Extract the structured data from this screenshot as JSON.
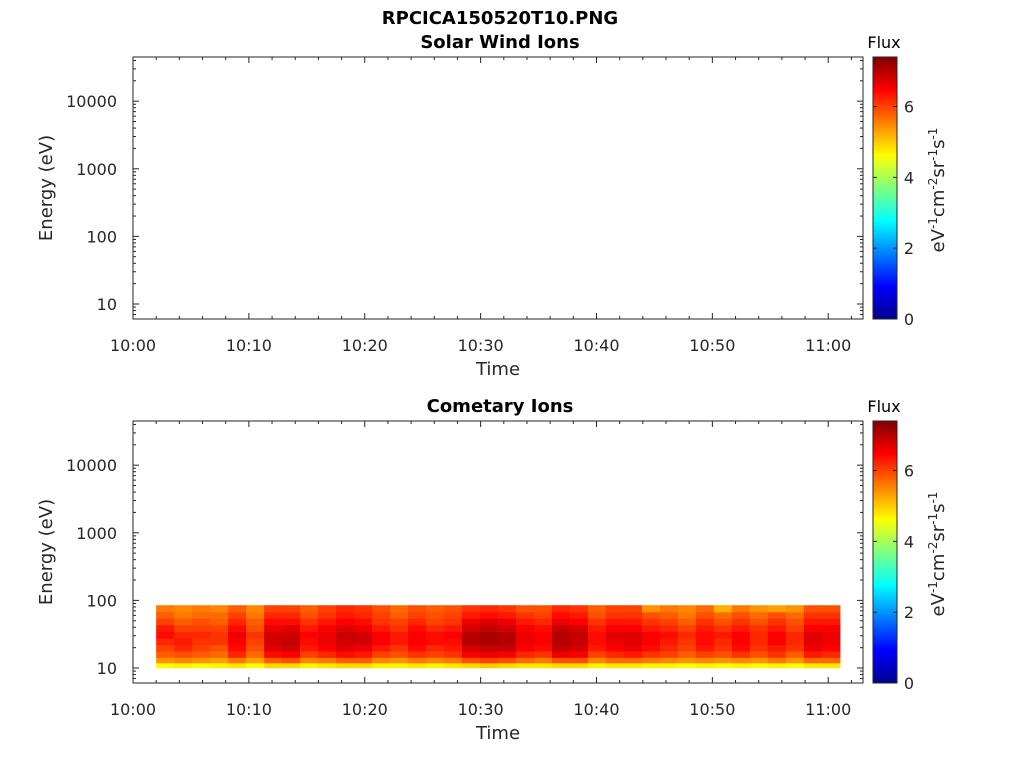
{
  "figure": {
    "title": "RPCICA150520T10.PNG"
  },
  "colors": {
    "axis": "#262626",
    "colormap": [
      "#00008f",
      "#0000ff",
      "#007fff",
      "#00ffff",
      "#7fff7f",
      "#ffff00",
      "#ff7f00",
      "#ff0000",
      "#7f0000"
    ]
  },
  "chart_data": [
    {
      "type": "heatmap",
      "title": "Solar Wind Ions",
      "xlabel": "Time",
      "ylabel": "Energy (eV)",
      "x_ticks": [
        "10:00",
        "10:10",
        "10:20",
        "10:30",
        "10:40",
        "10:50",
        "11:00"
      ],
      "x_range": [
        "10:00",
        "11:03"
      ],
      "y_scale": "log",
      "y_ticks": [
        "10",
        "100",
        "1000",
        "10000"
      ],
      "y_range": [
        6,
        45000
      ],
      "colorbar": {
        "title": "Flux",
        "label": "eV-1cm-2sr-1s-1",
        "ticks": [
          "0",
          "2",
          "4",
          "6"
        ],
        "range": [
          0,
          7.4
        ]
      },
      "data": []
    },
    {
      "type": "heatmap",
      "title": "Cometary Ions",
      "xlabel": "Time",
      "ylabel": "Energy (eV)",
      "x_ticks": [
        "10:00",
        "10:10",
        "10:20",
        "10:30",
        "10:40",
        "10:50",
        "11:00"
      ],
      "x_range": [
        "10:00",
        "11:03"
      ],
      "y_scale": "log",
      "y_ticks": [
        "10",
        "100",
        "1000",
        "10000"
      ],
      "y_range": [
        6,
        45000
      ],
      "colorbar": {
        "title": "Flux",
        "label": "eV-1cm-2sr-1s-1",
        "ticks": [
          "0",
          "2",
          "4",
          "6"
        ],
        "range": [
          0,
          7.4
        ]
      },
      "data": {
        "time_start": "10:02",
        "time_end": "11:01",
        "energy_bins": [
          11,
          13,
          16,
          20,
          25,
          31,
          39,
          49,
          61,
          76
        ],
        "n_time_steps": 38,
        "flux": [
          [
            4.6,
            5.4,
            5.8,
            6.0,
            6.2,
            6.4,
            6.3,
            6.0,
            5.8,
            5.6
          ],
          [
            4.7,
            5.5,
            5.9,
            6.2,
            6.3,
            6.2,
            6.0,
            5.8,
            5.6,
            5.5
          ],
          [
            4.6,
            5.4,
            5.8,
            6.0,
            6.1,
            6.2,
            6.0,
            5.9,
            5.7,
            5.6
          ],
          [
            4.7,
            5.3,
            5.7,
            5.9,
            6.1,
            6.1,
            6.0,
            5.8,
            5.7,
            5.5
          ],
          [
            4.8,
            5.6,
            6.2,
            6.4,
            6.5,
            6.6,
            6.4,
            6.2,
            6.0,
            5.8
          ],
          [
            4.6,
            5.3,
            5.7,
            5.9,
            6.0,
            6.1,
            5.9,
            5.8,
            5.6,
            5.5
          ],
          [
            4.9,
            5.8,
            6.4,
            6.7,
            6.8,
            6.8,
            6.6,
            6.4,
            6.2,
            6.0
          ],
          [
            4.9,
            5.9,
            6.5,
            6.8,
            6.9,
            6.8,
            6.7,
            6.4,
            6.2,
            6.0
          ],
          [
            4.7,
            5.5,
            6.0,
            6.3,
            6.4,
            6.5,
            6.3,
            6.1,
            5.9,
            5.8
          ],
          [
            4.8,
            5.6,
            6.2,
            6.5,
            6.6,
            6.6,
            6.5,
            6.3,
            6.1,
            6.0
          ],
          [
            4.9,
            5.8,
            6.4,
            6.7,
            6.8,
            6.9,
            6.7,
            6.5,
            6.3,
            6.2
          ],
          [
            4.9,
            5.8,
            6.3,
            6.6,
            6.8,
            6.8,
            6.6,
            6.4,
            6.2,
            6.1
          ],
          [
            4.7,
            5.5,
            6.0,
            6.3,
            6.5,
            6.5,
            6.3,
            6.1,
            6.0,
            5.9
          ],
          [
            4.7,
            5.4,
            5.9,
            6.1,
            6.3,
            6.3,
            6.1,
            6.0,
            5.8,
            5.7
          ],
          [
            4.8,
            5.6,
            6.1,
            6.4,
            6.5,
            6.5,
            6.4,
            6.2,
            6.0,
            5.9
          ],
          [
            4.7,
            5.5,
            6.0,
            6.2,
            6.4,
            6.4,
            6.2,
            6.0,
            5.9,
            5.8
          ],
          [
            4.8,
            5.6,
            6.1,
            6.3,
            6.4,
            6.5,
            6.3,
            6.1,
            6.0,
            5.9
          ],
          [
            4.9,
            5.9,
            6.5,
            6.8,
            7.0,
            7.0,
            6.8,
            6.6,
            6.3,
            6.1
          ],
          [
            5.0,
            6.0,
            6.6,
            6.9,
            7.1,
            7.1,
            6.9,
            6.7,
            6.4,
            6.2
          ],
          [
            4.9,
            5.9,
            6.5,
            6.9,
            7.0,
            7.0,
            6.8,
            6.6,
            6.3,
            6.1
          ],
          [
            4.8,
            5.7,
            6.2,
            6.5,
            6.6,
            6.6,
            6.5,
            6.3,
            6.1,
            5.9
          ],
          [
            4.8,
            5.6,
            6.1,
            6.4,
            6.5,
            6.5,
            6.4,
            6.2,
            6.0,
            5.9
          ],
          [
            4.9,
            5.9,
            6.6,
            6.9,
            7.0,
            7.0,
            6.9,
            6.6,
            6.4,
            6.2
          ],
          [
            4.9,
            5.9,
            6.5,
            6.8,
            6.9,
            6.9,
            6.8,
            6.5,
            6.3,
            6.1
          ],
          [
            4.7,
            5.5,
            6.0,
            6.3,
            6.4,
            6.4,
            6.3,
            6.1,
            5.9,
            5.8
          ],
          [
            4.8,
            5.7,
            6.2,
            6.5,
            6.6,
            6.7,
            6.5,
            6.3,
            6.1,
            6.0
          ],
          [
            4.8,
            5.7,
            6.3,
            6.6,
            6.7,
            6.7,
            6.5,
            6.3,
            6.1,
            6.0
          ],
          [
            4.7,
            5.6,
            6.1,
            6.4,
            6.5,
            6.5,
            6.3,
            6.1,
            5.9,
            5.4
          ],
          [
            4.7,
            5.5,
            6.0,
            6.2,
            6.3,
            6.4,
            6.2,
            6.0,
            5.8,
            5.6
          ],
          [
            4.6,
            5.4,
            5.8,
            6.0,
            6.1,
            6.2,
            6.0,
            5.8,
            5.6,
            5.5
          ],
          [
            4.7,
            5.5,
            6.0,
            6.3,
            6.4,
            6.4,
            6.3,
            6.1,
            5.9,
            5.7
          ],
          [
            4.6,
            5.4,
            5.9,
            6.1,
            6.2,
            6.3,
            6.1,
            5.9,
            5.7,
            5.2
          ],
          [
            4.7,
            5.5,
            6.1,
            6.4,
            6.5,
            6.5,
            6.3,
            6.1,
            5.9,
            5.6
          ],
          [
            4.6,
            5.4,
            5.9,
            6.1,
            6.2,
            6.2,
            6.1,
            5.9,
            5.7,
            5.4
          ],
          [
            4.7,
            5.6,
            6.1,
            6.3,
            6.5,
            6.5,
            6.3,
            6.1,
            5.9,
            5.3
          ],
          [
            4.6,
            5.4,
            5.8,
            6.1,
            6.2,
            6.2,
            6.0,
            5.9,
            5.7,
            5.4
          ],
          [
            4.8,
            5.7,
            6.3,
            6.6,
            6.7,
            6.7,
            6.5,
            6.3,
            6.1,
            5.9
          ],
          [
            4.8,
            5.7,
            6.2,
            6.5,
            6.6,
            6.6,
            6.5,
            6.3,
            6.1,
            5.9
          ]
        ]
      }
    }
  ]
}
